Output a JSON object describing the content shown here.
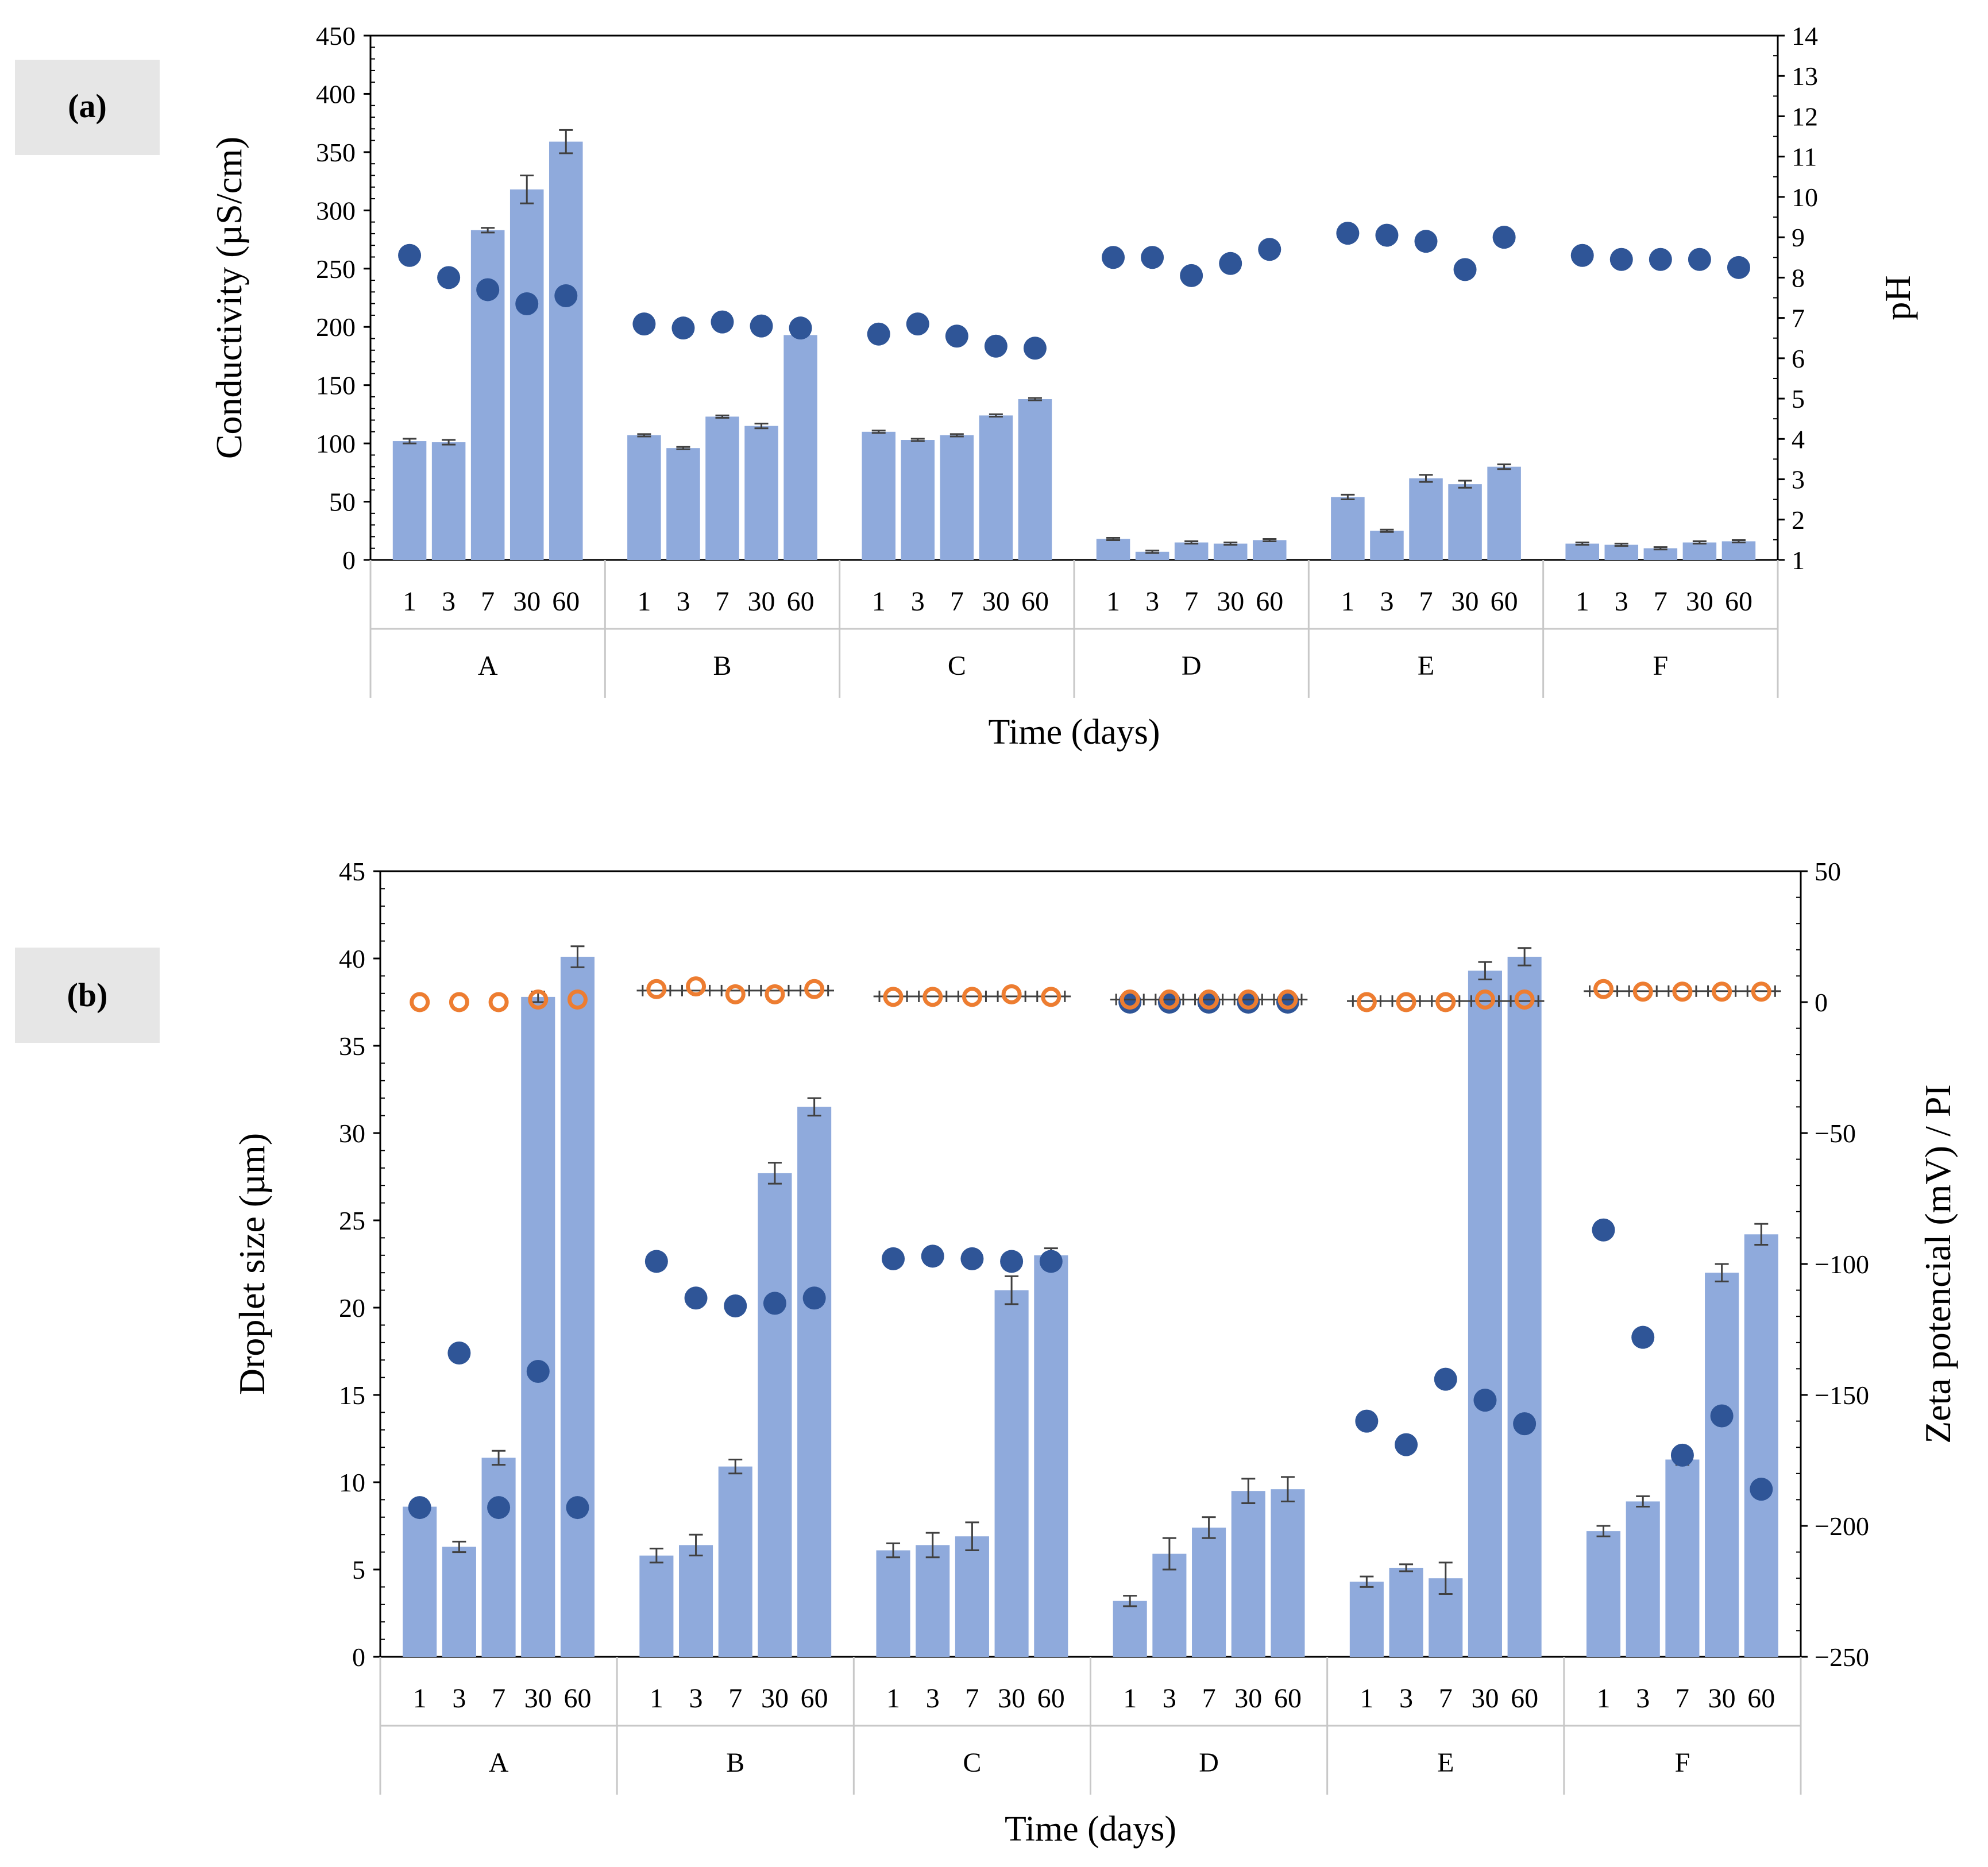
{
  "colors": {
    "bar": "#8faadc",
    "marker_blue": "#2f5597",
    "marker_orange": "#ed7d31",
    "error": "#404040",
    "axis": "#000000",
    "sep": "#c8c8c8"
  },
  "chart_data": [
    {
      "panel_label": "(a)",
      "type": "bar",
      "groups": [
        "A",
        "B",
        "C",
        "D",
        "E",
        "F"
      ],
      "days": [
        "1",
        "3",
        "7",
        "30",
        "60"
      ],
      "xlabel": "Time (days)",
      "ylabel": "Conductivity (µS/cm)",
      "y2label": "pH",
      "ylim": [
        0,
        450
      ],
      "yticks": [
        "0",
        "50",
        "100",
        "150",
        "200",
        "250",
        "300",
        "350",
        "400",
        "450"
      ],
      "y2lim": [
        1,
        14
      ],
      "y2ticks": [
        "1",
        "2",
        "3",
        "4",
        "5",
        "6",
        "7",
        "8",
        "9",
        "10",
        "11",
        "12",
        "13",
        "14"
      ],
      "series": [
        {
          "name": "Conductivity",
          "kind": "bar",
          "axis": "left",
          "values": [
            102,
            101,
            283,
            318,
            359,
            107,
            96,
            123,
            115,
            193,
            110,
            103,
            107,
            124,
            138,
            18,
            7,
            15,
            14,
            17,
            54,
            25,
            70,
            65,
            80,
            14,
            13,
            10,
            15,
            16
          ],
          "errors": [
            2,
            2,
            2,
            12,
            10,
            1,
            1,
            1,
            2,
            1,
            1,
            1,
            1,
            1,
            1,
            1,
            1,
            1,
            1,
            1,
            2,
            1,
            3,
            3,
            2,
            1,
            1,
            1,
            1,
            1
          ]
        },
        {
          "name": "pH",
          "kind": "scatter",
          "axis": "right",
          "values": [
            8.55,
            8.0,
            7.7,
            7.35,
            7.55,
            6.85,
            6.75,
            6.9,
            6.8,
            6.75,
            6.6,
            6.85,
            6.55,
            6.3,
            6.25,
            8.5,
            8.5,
            8.05,
            8.35,
            8.7,
            9.1,
            9.05,
            8.9,
            8.2,
            9.0,
            8.55,
            8.45,
            8.45,
            8.45,
            8.25
          ]
        }
      ]
    },
    {
      "panel_label": "(b)",
      "type": "bar",
      "groups": [
        "A",
        "B",
        "C",
        "D",
        "E",
        "F"
      ],
      "days": [
        "1",
        "3",
        "7",
        "30",
        "60"
      ],
      "xlabel": "Time (days)",
      "ylabel": "Droplet size (µm)",
      "y2label": "Zeta potencial (mV) / PI",
      "ylim": [
        0,
        45
      ],
      "yticks": [
        "0",
        "5",
        "10",
        "15",
        "20",
        "25",
        "30",
        "35",
        "40",
        "45"
      ],
      "y2lim": [
        -250,
        50
      ],
      "y2ticks": [
        "-250",
        "-200",
        "-150",
        "-100",
        "-50",
        "0",
        "50"
      ],
      "series": [
        {
          "name": "Droplet size",
          "kind": "bar",
          "axis": "left",
          "values": [
            8.6,
            6.3,
            11.4,
            37.8,
            40.1,
            5.8,
            6.4,
            10.9,
            27.7,
            31.5,
            6.1,
            6.4,
            6.9,
            21.0,
            23.0,
            3.2,
            5.9,
            7.4,
            9.5,
            9.6,
            4.3,
            5.1,
            4.5,
            39.3,
            40.1,
            7.2,
            8.9,
            11.3,
            22.0,
            24.2
          ],
          "errors": [
            0.3,
            0.3,
            0.4,
            0.3,
            0.6,
            0.4,
            0.6,
            0.4,
            0.6,
            0.5,
            0.4,
            0.7,
            0.8,
            0.8,
            0.4,
            0.3,
            0.9,
            0.6,
            0.7,
            0.7,
            0.3,
            0.2,
            0.9,
            0.5,
            0.5,
            0.3,
            0.3,
            0.3,
            0.5,
            0.6
          ]
        },
        {
          "name": "Zeta potential",
          "kind": "scatter",
          "axis": "right",
          "values": [
            -193,
            -134,
            -193,
            -141,
            -193,
            -99,
            -113,
            -116,
            -115,
            -113,
            -98,
            -97,
            -98,
            -99,
            -99,
            0,
            0,
            0,
            0,
            0,
            -160,
            -169,
            -144,
            -152,
            -161,
            -87,
            -128,
            -173,
            -158,
            -186
          ]
        },
        {
          "name": "PI",
          "kind": "scatter-open",
          "axis": "right",
          "values": [
            0,
            0,
            0,
            1,
            1,
            5,
            6,
            3,
            3,
            5,
            2,
            2,
            2,
            3,
            2,
            1,
            1,
            1,
            1,
            1,
            0,
            0,
            0,
            1,
            1,
            5,
            4,
            4,
            4,
            4
          ],
          "xerr_groups": [
            "B",
            "C",
            "D",
            "E",
            "F"
          ]
        }
      ]
    }
  ]
}
